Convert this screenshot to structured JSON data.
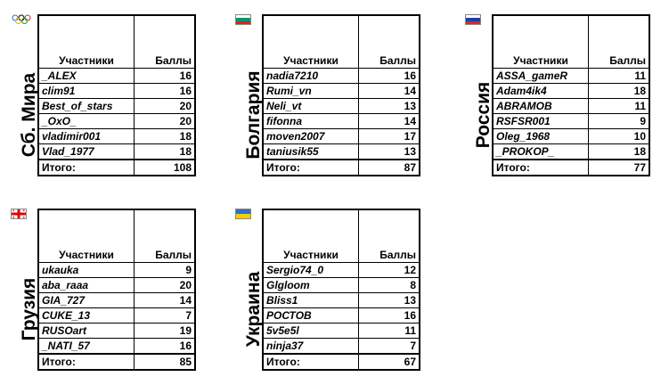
{
  "column_labels": {
    "participants": "Участники",
    "points": "Баллы"
  },
  "total_label": "Итого:",
  "teams": [
    {
      "name": "Сб. Мира",
      "flag_icon": "olympic-rings-icon",
      "players": [
        {
          "name": "_ALEX",
          "score": "16"
        },
        {
          "name": "clim91",
          "score": "16"
        },
        {
          "name": "Best_of_stars",
          "score": "20"
        },
        {
          "name": "_OxO_",
          "score": "20"
        },
        {
          "name": "vladimir001",
          "score": "18"
        },
        {
          "name": "Vlad_1977",
          "score": "18"
        }
      ],
      "total": "108"
    },
    {
      "name": "Болгария",
      "flag_icon": "bulgaria-flag-icon",
      "players": [
        {
          "name": "nadia7210",
          "score": "16"
        },
        {
          "name": "Rumi_vn",
          "score": "14"
        },
        {
          "name": "Neli_vt",
          "score": "13"
        },
        {
          "name": "fifonna",
          "score": "14"
        },
        {
          "name": "moven2007",
          "score": "17"
        },
        {
          "name": "taniusik55",
          "score": "13"
        }
      ],
      "total": "87"
    },
    {
      "name": "Россия",
      "flag_icon": "russia-flag-icon",
      "players": [
        {
          "name": "ASSA_gameR",
          "score": "11"
        },
        {
          "name": "Adam4ik4",
          "score": "18"
        },
        {
          "name": "ABRAMOB",
          "score": "11"
        },
        {
          "name": "RSFSR001",
          "score": "9"
        },
        {
          "name": "Oleg_1968",
          "score": "10"
        },
        {
          "name": "_PROKOP_",
          "score": "18"
        }
      ],
      "total": "77"
    },
    {
      "name": "Грузия",
      "flag_icon": "georgia-flag-icon",
      "players": [
        {
          "name": "ukauka",
          "score": "9"
        },
        {
          "name": "aba_raaa",
          "score": "20"
        },
        {
          "name": "GIA_727",
          "score": "14"
        },
        {
          "name": "CUKE_13",
          "score": "7"
        },
        {
          "name": "RUSOart",
          "score": "19"
        },
        {
          "name": "_NATI_57",
          "score": "16"
        }
      ],
      "total": "85"
    },
    {
      "name": "Украина",
      "flag_icon": "ukraine-flag-icon",
      "players": [
        {
          "name": "Sergio74_0",
          "score": "12"
        },
        {
          "name": "Glgloom",
          "score": "8"
        },
        {
          "name": "Bliss1",
          "score": "13"
        },
        {
          "name": "РОСТОВ",
          "score": "16"
        },
        {
          "name": "5v5e5l",
          "score": "11"
        },
        {
          "name": "ninja37",
          "score": "7"
        }
      ],
      "total": "67"
    }
  ]
}
